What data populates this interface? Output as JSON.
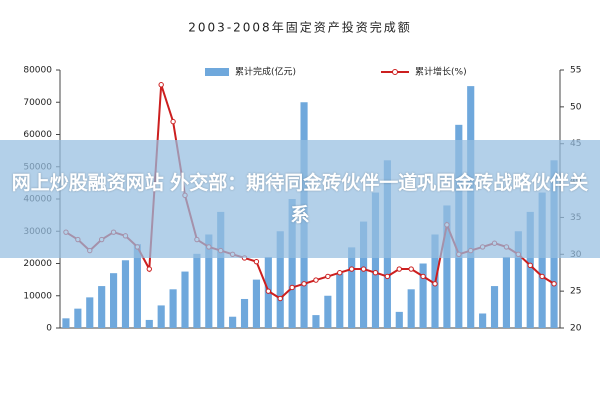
{
  "chart_data": {
    "type": "bar_line",
    "title": "2003-2008年固定资产投资完成额",
    "categories": [
      null,
      null,
      null,
      null,
      null,
      null,
      null,
      null,
      null,
      null,
      null,
      null,
      null,
      null,
      null,
      null,
      null,
      null,
      null,
      null,
      null,
      null,
      null,
      null,
      null,
      null,
      null,
      null,
      null,
      null,
      null,
      null,
      null,
      null,
      null,
      null,
      null,
      null,
      null,
      null,
      null,
      null
    ],
    "series": [
      {
        "name": "累计完成(亿元)",
        "color": "#6fa8dc",
        "type": "bar",
        "values": [
          3000,
          6000,
          9500,
          13000,
          17000,
          21000,
          26000,
          2500,
          7000,
          12000,
          17500,
          23000,
          29000,
          36000,
          3500,
          9000,
          15000,
          22000,
          30000,
          40000,
          70000,
          4000,
          10000,
          17000,
          25000,
          33000,
          42000,
          52000,
          5000,
          12000,
          20000,
          29000,
          38000,
          63000,
          75000,
          4500,
          13000,
          22000,
          30000,
          36000,
          42000,
          52000
        ]
      },
      {
        "name": "累计增长(%)",
        "color": "#cc1f1f",
        "type": "line",
        "axis": "y2",
        "values": [
          33,
          32,
          30.5,
          32,
          33,
          32.5,
          31,
          28,
          53,
          48,
          38,
          32,
          31,
          30.5,
          30,
          29.5,
          29,
          25,
          24,
          25.5,
          26,
          26.5,
          27,
          27.5,
          28,
          28,
          27.5,
          27,
          28,
          28,
          27,
          26,
          34,
          30,
          30.5,
          31,
          31.5,
          31,
          30,
          28.5,
          27,
          26
        ]
      }
    ],
    "ylim": [
      0,
      80000
    ],
    "yticks": [
      0,
      10000,
      20000,
      30000,
      40000,
      50000,
      60000,
      70000,
      80000
    ],
    "y2lim": [
      20,
      55
    ],
    "y2ticks": [
      20,
      25,
      30,
      35,
      40,
      45,
      50,
      55
    ],
    "legend": "top"
  },
  "headline": "网上炒股融资网站 外交部：期待同金砖伙伴一道巩固金砖战略伙伴关系"
}
